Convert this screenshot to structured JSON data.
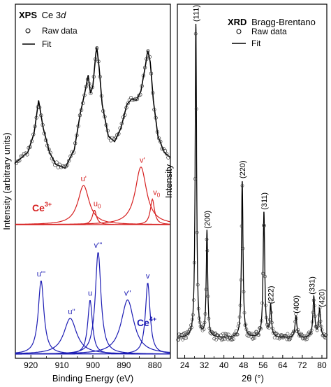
{
  "chart_data": [
    {
      "type": "line",
      "panel": "xps",
      "title_bold": "XPS",
      "title_rest": "Ce 3",
      "title_italic": "d",
      "xlabel": "Binding Energy (eV)",
      "ylabel": "Intensity (arbitrary units)",
      "xlim": [
        925,
        875
      ],
      "x_reversed": true,
      "x_ticks": [
        920,
        910,
        900,
        890,
        880
      ],
      "x_tick_labels": [
        "920",
        "910",
        "900",
        "890",
        "880"
      ],
      "legend": {
        "position": "top-left",
        "entries": [
          {
            "label": "Raw data",
            "marker": "open-circle"
          },
          {
            "label": "Fit",
            "marker": "line"
          }
        ]
      },
      "colors": {
        "data": "#000000",
        "ce3": "#d62020",
        "ce4": "#1c1cb4"
      },
      "ce3_label": "Ce",
      "ce3_sup": "3+",
      "ce4_label": "Ce",
      "ce4_sup": "4+",
      "total_fit": {
        "x": [
          925,
          921,
          919,
          917.5,
          916,
          914,
          912,
          909,
          906,
          904,
          902.5,
          901.5,
          900.8,
          900,
          898.8,
          898,
          897,
          895,
          893,
          891,
          889,
          887.5,
          886,
          884.5,
          883,
          882.3,
          881.5,
          880.5,
          879,
          877,
          875
        ],
        "y": [
          0.08,
          0.16,
          0.3,
          0.55,
          0.34,
          0.16,
          0.07,
          0.04,
          0.18,
          0.46,
          0.62,
          0.74,
          0.6,
          0.66,
          0.96,
          0.8,
          0.52,
          0.28,
          0.24,
          0.34,
          0.52,
          0.56,
          0.55,
          0.62,
          0.82,
          0.93,
          0.84,
          0.55,
          0.28,
          0.16,
          0.12
        ]
      },
      "ce3_peaks": [
        {
          "name": "u'",
          "center": 903.0,
          "height": 1.0,
          "width": 2.2
        },
        {
          "name": "u0",
          "center": 899.5,
          "height": 0.37,
          "width": 0.8
        },
        {
          "name": "v'",
          "center": 884.5,
          "height": 1.47,
          "width": 2.2
        },
        {
          "name": "v0",
          "center": 880.8,
          "height": 0.65,
          "width": 0.8
        }
      ],
      "ce3_peak_labels": [
        {
          "text": "u'",
          "sub": ""
        },
        {
          "text": "u",
          "sub": "0"
        },
        {
          "text": "v'",
          "sub": ""
        },
        {
          "text": "v",
          "sub": "0"
        }
      ],
      "ce4_peaks": [
        {
          "name": "u'''",
          "center": 916.7,
          "height": 0.72,
          "width": 1.1
        },
        {
          "name": "u''",
          "center": 907.3,
          "height": 0.35,
          "width": 2.5
        },
        {
          "name": "u",
          "center": 900.9,
          "height": 0.53,
          "width": 0.9
        },
        {
          "name": "v'''",
          "center": 898.3,
          "height": 1.0,
          "width": 1.1
        },
        {
          "name": "v''",
          "center": 888.8,
          "height": 0.53,
          "width": 2.5
        },
        {
          "name": "v",
          "center": 882.3,
          "height": 0.7,
          "width": 0.9
        }
      ],
      "ce4_peak_labels": [
        "u'''",
        "u''",
        "u",
        "v'''",
        "v''",
        "v"
      ]
    },
    {
      "type": "line",
      "panel": "xrd",
      "title_bold": "XRD",
      "title_rest": "Bragg-Brentano",
      "xlabel": "2θ (°)",
      "ylabel": "Intensity",
      "xlim": [
        21,
        82
      ],
      "x_ticks": [
        24,
        32,
        40,
        48,
        56,
        64,
        72,
        80
      ],
      "x_tick_labels": [
        "24",
        "32",
        "40",
        "48",
        "56",
        "64",
        "72",
        "80"
      ],
      "legend": {
        "position": "top-left",
        "entries": [
          {
            "label": "Raw data",
            "marker": "open-circle"
          },
          {
            "label": "Fit",
            "marker": "line"
          }
        ]
      },
      "baseline": 0.02,
      "peaks": [
        {
          "hkl": "(111)",
          "two_theta": 28.55,
          "intensity": 1.0,
          "width": 0.35
        },
        {
          "hkl": "(200)",
          "two_theta": 33.08,
          "intensity": 0.34,
          "width": 0.35
        },
        {
          "hkl": "(220)",
          "two_theta": 47.48,
          "intensity": 0.5,
          "width": 0.38
        },
        {
          "hkl": "(311)",
          "two_theta": 56.33,
          "intensity": 0.4,
          "width": 0.4
        },
        {
          "hkl": "(222)",
          "two_theta": 59.08,
          "intensity": 0.1,
          "width": 0.4
        },
        {
          "hkl": "(400)",
          "two_theta": 69.4,
          "intensity": 0.07,
          "width": 0.45
        },
        {
          "hkl": "(331)",
          "two_theta": 76.7,
          "intensity": 0.13,
          "width": 0.45
        },
        {
          "hkl": "(420)",
          "two_theta": 79.07,
          "intensity": 0.09,
          "width": 0.45
        }
      ]
    }
  ]
}
